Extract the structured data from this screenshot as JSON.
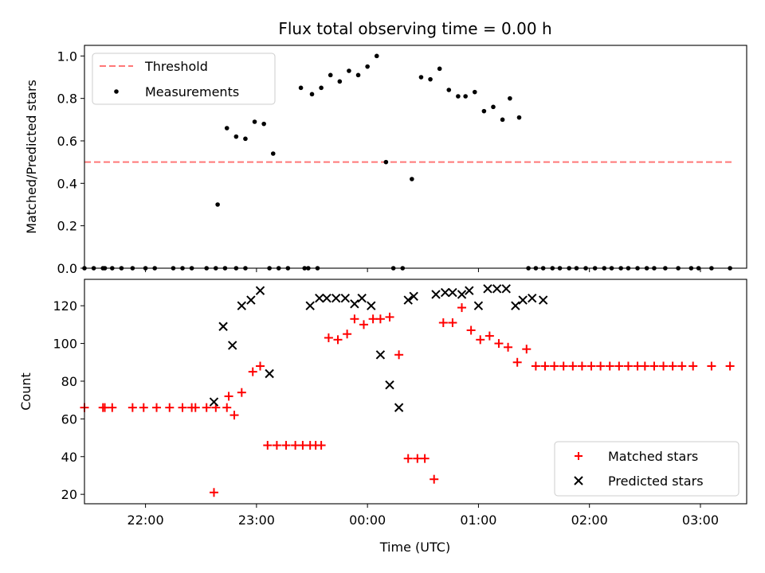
{
  "title": "Flux total observing time = 0.00 h",
  "chart_data": [
    {
      "type": "scatter",
      "ylabel": "Matched/Predicted stars",
      "ylim": [
        0,
        1.05
      ],
      "yticks": [
        "0.0",
        "0.2",
        "0.4",
        "0.6",
        "0.8",
        "1.0"
      ],
      "xlim": [
        "21:27",
        "03:25"
      ],
      "legend": "top-left",
      "threshold": {
        "name": "Threshold",
        "value": 0.5,
        "x": [
          "21:27",
          "03:17"
        ],
        "color": "#ff7777"
      },
      "measurements": {
        "name": "Measurements",
        "color": "#000000",
        "x": [
          "21:27",
          "21:37",
          "21:38",
          "21:42",
          "21:47",
          "21:53",
          "22:00",
          "22:05",
          "22:15",
          "22:20",
          "22:25",
          "22:33",
          "22:38",
          "22:43",
          "22:49",
          "22:54",
          "23:07",
          "23:12",
          "23:17",
          "23:26",
          "23:28",
          "23:33",
          "21:32",
          "22:39",
          "22:44",
          "22:49",
          "22:54",
          "22:59",
          "23:04",
          "23:09",
          "23:24",
          "23:30",
          "23:35",
          "23:40",
          "23:45",
          "23:50",
          "23:55",
          "00:00",
          "00:05",
          "00:10",
          "00:14",
          "00:19",
          "00:24",
          "00:29",
          "00:34",
          "00:39",
          "00:44",
          "00:49",
          "00:53",
          "00:58",
          "01:03",
          "01:08",
          "01:13",
          "01:17",
          "01:22",
          "01:27",
          "01:31",
          "01:35",
          "01:40",
          "01:44",
          "01:49",
          "01:53",
          "01:58",
          "02:03",
          "02:08",
          "02:12",
          "02:17",
          "02:21",
          "02:26",
          "02:31",
          "02:35",
          "02:41",
          "02:48",
          "02:55",
          "02:59",
          "03:06",
          "03:16"
        ],
        "y": [
          0,
          0,
          0,
          0,
          0,
          0,
          0,
          0,
          0,
          0,
          0,
          0,
          0,
          0,
          0,
          0,
          0,
          0,
          0,
          0,
          0,
          0,
          0,
          0.3,
          0.66,
          0.62,
          0.61,
          0.69,
          0.68,
          0.54,
          0.85,
          0.82,
          0.85,
          0.91,
          0.88,
          0.93,
          0.91,
          0.95,
          1.0,
          0.5,
          0,
          0,
          0.42,
          0.9,
          0.89,
          0.94,
          0.84,
          0.81,
          0.81,
          0.83,
          0.74,
          0.76,
          0.7,
          0.8,
          0.71,
          0,
          0,
          0,
          0,
          0,
          0,
          0,
          0,
          0,
          0,
          0,
          0,
          0,
          0,
          0,
          0,
          0,
          0,
          0,
          0,
          0,
          0
        ]
      }
    },
    {
      "type": "scatter",
      "ylabel": "Count",
      "xlabel": "Time (UTC)",
      "ylim": [
        15,
        134
      ],
      "yticks": [
        "20",
        "40",
        "60",
        "80",
        "100",
        "120"
      ],
      "xlim": [
        "21:27",
        "03:25"
      ],
      "xticks": [
        "22:00",
        "23:00",
        "00:00",
        "01:00",
        "02:00",
        "03:00"
      ],
      "legend": "bottom-right",
      "matched": {
        "name": "Matched stars",
        "color": "#ff0000",
        "marker": "plus",
        "x": [
          "21:27",
          "21:37",
          "21:38",
          "21:42",
          "21:53",
          "21:59",
          "22:06",
          "22:13",
          "22:20",
          "22:25",
          "22:27",
          "22:33",
          "22:38",
          "22:44",
          "22:37",
          "22:45",
          "22:48",
          "22:52",
          "22:58",
          "23:02",
          "23:06",
          "23:11",
          "23:16",
          "23:21",
          "23:25",
          "23:29",
          "23:32",
          "23:35",
          "23:39",
          "23:44",
          "23:49",
          "23:53",
          "23:58",
          "00:03",
          "00:07",
          "00:12",
          "00:17",
          "00:22",
          "00:27",
          "00:31",
          "00:36",
          "00:41",
          "00:46",
          "00:51",
          "00:56",
          "01:01",
          "01:06",
          "01:11",
          "01:16",
          "01:21",
          "01:26",
          "01:31",
          "01:36",
          "01:41",
          "01:46",
          "01:51",
          "01:56",
          "02:01",
          "02:06",
          "02:11",
          "02:16",
          "02:21",
          "02:26",
          "02:30",
          "02:35",
          "02:40",
          "02:45",
          "02:50",
          "02:56",
          "03:06",
          "03:16"
        ],
        "y": [
          66,
          66,
          66,
          66,
          66,
          66,
          66,
          66,
          66,
          66,
          66,
          66,
          66,
          66,
          21,
          72,
          62,
          74,
          85,
          88,
          46,
          46,
          46,
          46,
          46,
          46,
          46,
          46,
          103,
          102,
          105,
          113,
          110,
          113,
          113,
          114,
          94,
          39,
          39,
          39,
          28,
          111,
          111,
          119,
          107,
          102,
          104,
          100,
          98,
          90,
          97,
          88,
          88,
          88,
          88,
          88,
          88,
          88,
          88,
          88,
          88,
          88,
          88,
          88,
          88,
          88,
          88,
          88,
          88,
          88,
          88
        ]
      },
      "predicted": {
        "name": "Predicted stars",
        "color": "#000000",
        "marker": "x",
        "x": [
          "22:37",
          "22:42",
          "22:47",
          "22:52",
          "22:57",
          "23:02",
          "23:07",
          "23:29",
          "23:34",
          "23:38",
          "23:43",
          "23:48",
          "23:53",
          "23:57",
          "00:02",
          "00:07",
          "00:12",
          "00:17",
          "00:22",
          "00:25",
          "00:37",
          "00:42",
          "00:46",
          "00:51",
          "00:55",
          "01:00",
          "01:05",
          "01:10",
          "01:15",
          "01:20",
          "01:24",
          "01:29",
          "01:35"
        ],
        "y": [
          69,
          109,
          99,
          120,
          123,
          128,
          84,
          120,
          124,
          124,
          124,
          124,
          121,
          124,
          120,
          94,
          78,
          66,
          123,
          125,
          126,
          127,
          127,
          126,
          128,
          120,
          129,
          129,
          129,
          120,
          123,
          124,
          123
        ]
      }
    }
  ]
}
